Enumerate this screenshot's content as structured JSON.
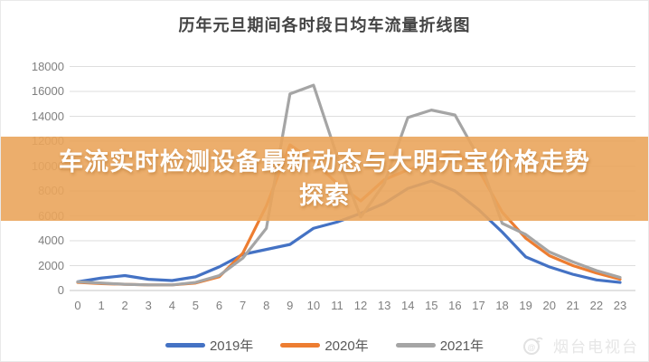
{
  "title": "历年元旦期间各时段日均车流量折线图",
  "banner": {
    "line1": "车流实时检测设备最新动态与大明元宝价格走势",
    "line2": "探索",
    "bg_color": "#EAA55C",
    "text_color": "#FFFFFF"
  },
  "watermark": {
    "text": "烟台电视台",
    "icon": "tv-station-logo-icon"
  },
  "legend": [
    {
      "label": "2019年",
      "color": "#4472C4"
    },
    {
      "label": "2020年",
      "color": "#ED7D31"
    },
    {
      "label": "2021年",
      "color": "#A5A5A5"
    }
  ],
  "chart_data": {
    "type": "line",
    "title": "历年元旦期间各时段日均车流量折线图",
    "xlabel": "",
    "ylabel": "",
    "categories": [
      "0",
      "1",
      "2",
      "3",
      "4",
      "5",
      "6",
      "7",
      "8",
      "9",
      "10",
      "11",
      "12",
      "13",
      "14",
      "15",
      "16",
      "17",
      "18",
      "19",
      "20",
      "21",
      "22",
      "23"
    ],
    "ylim": [
      0,
      18000
    ],
    "ytick_step": 2000,
    "yticks": [
      "0",
      "2000",
      "4000",
      "6000",
      "8000",
      "10000",
      "12000",
      "14000",
      "16000",
      "18000"
    ],
    "grid": true,
    "legend_position": "bottom",
    "series": [
      {
        "name": "2019年",
        "color": "#4472C4",
        "values": [
          700,
          1000,
          1200,
          900,
          800,
          1100,
          1900,
          2900,
          3300,
          3700,
          5000,
          5500,
          6200,
          7000,
          8200,
          8800,
          8000,
          6500,
          4700,
          2700,
          1900,
          1300,
          850,
          650
        ]
      },
      {
        "name": "2020年",
        "color": "#ED7D31",
        "values": [
          650,
          550,
          500,
          450,
          450,
          600,
          1100,
          3000,
          6800,
          11700,
          10400,
          8600,
          7200,
          8900,
          9700,
          10300,
          11200,
          9700,
          6300,
          4200,
          2800,
          2000,
          1400,
          900
        ]
      },
      {
        "name": "2021年",
        "color": "#A5A5A5",
        "values": [
          700,
          600,
          500,
          450,
          450,
          650,
          1200,
          2600,
          5000,
          15800,
          16500,
          10800,
          5900,
          8600,
          13900,
          14500,
          14100,
          10700,
          5400,
          4500,
          3100,
          2300,
          1600,
          1050
        ]
      }
    ]
  }
}
